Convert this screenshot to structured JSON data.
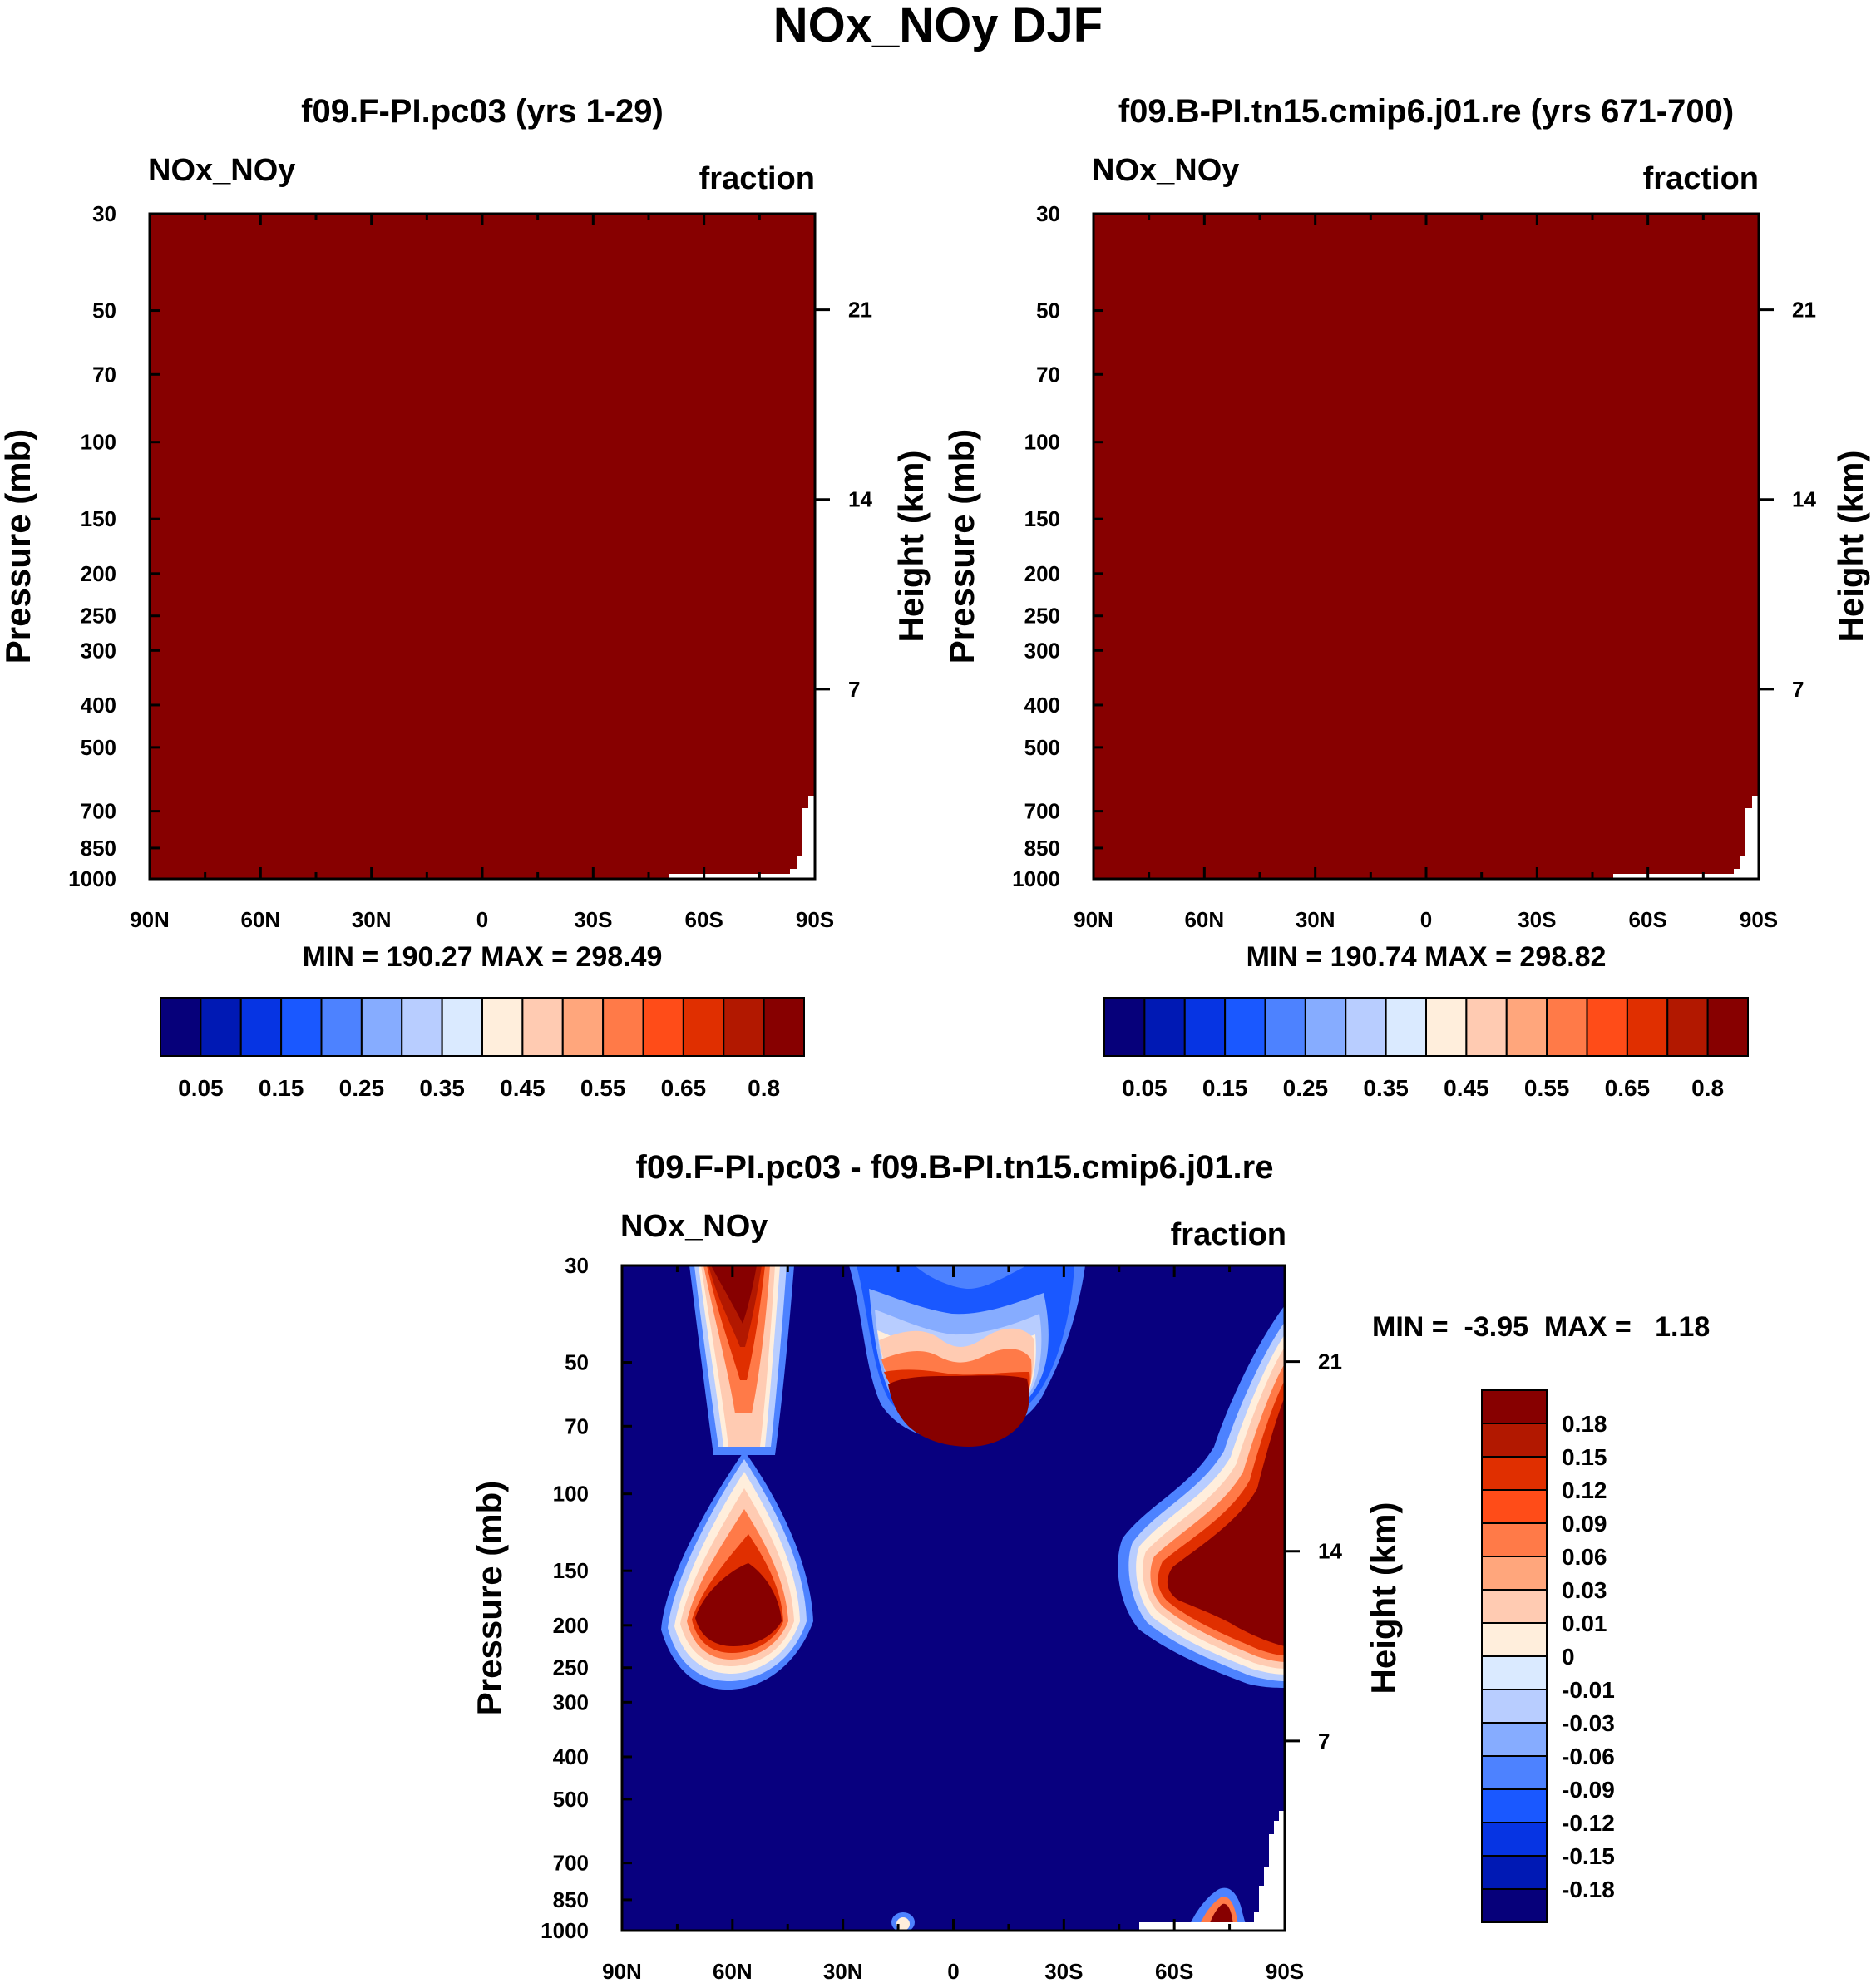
{
  "chart_data": {
    "type": "heatmap",
    "title": "NOx_NOy DJF",
    "panels": [
      {
        "id": "p1",
        "title": "f09.F-PI.pc03 (yrs 1-29)",
        "variable": "NOx_NOy",
        "units": "fraction",
        "ylabel": "Pressure (mb)",
        "y2label": "Height (km)",
        "x_ticks": [
          "90N",
          "60N",
          "30N",
          "0",
          "30S",
          "60S",
          "90S"
        ],
        "y_ticks": [
          "30",
          "50",
          "70",
          "100",
          "150",
          "200",
          "250",
          "300",
          "400",
          "500",
          "700",
          "850",
          "1000"
        ],
        "y2_ticks": [
          "21",
          "14",
          "7"
        ],
        "stats": "MIN = 190.27  MAX = 298.49",
        "fill": "#870000",
        "colorbar_labels": [
          "0.05",
          "0.15",
          "0.25",
          "0.35",
          "0.45",
          "0.55",
          "0.65",
          "0.8"
        ]
      },
      {
        "id": "p2",
        "title": "f09.B-PI.tn15.cmip6.j01.re (yrs 671-700)",
        "variable": "NOx_NOy",
        "units": "fraction",
        "ylabel": "Pressure (mb)",
        "y2label": "Height (km)",
        "x_ticks": [
          "90N",
          "60N",
          "30N",
          "0",
          "30S",
          "60S",
          "90S"
        ],
        "y_ticks": [
          "30",
          "50",
          "70",
          "100",
          "150",
          "200",
          "250",
          "300",
          "400",
          "500",
          "700",
          "850",
          "1000"
        ],
        "y2_ticks": [
          "21",
          "14",
          "7"
        ],
        "stats": "MIN = 190.74  MAX = 298.82",
        "fill": "#870000",
        "colorbar_labels": [
          "0.05",
          "0.15",
          "0.25",
          "0.35",
          "0.45",
          "0.55",
          "0.65",
          "0.8"
        ]
      },
      {
        "id": "p3",
        "title": "f09.F-PI.pc03 - f09.B-PI.tn15.cmip6.j01.re",
        "variable": "NOx_NOy",
        "units": "fraction",
        "ylabel": "Pressure (mb)",
        "y2label": "Height (km)",
        "x_ticks": [
          "90N",
          "60N",
          "30N",
          "0",
          "30S",
          "60S",
          "90S"
        ],
        "y_ticks": [
          "30",
          "50",
          "70",
          "100",
          "150",
          "200",
          "250",
          "300",
          "400",
          "500",
          "700",
          "850",
          "1000"
        ],
        "y2_ticks": [
          "21",
          "14",
          "7"
        ],
        "stats": "MIN =  -3.95  MAX =   1.18",
        "fill": "#08007f",
        "colorbar_labels": [
          "0.18",
          "0.15",
          "0.12",
          "0.09",
          "0.06",
          "0.03",
          "0.01",
          "0",
          "-0.01",
          "-0.03",
          "-0.06",
          "-0.09",
          "-0.12",
          "-0.15",
          "-0.18"
        ]
      }
    ],
    "palette_main": [
      "#06007a",
      "#0019b4",
      "#0634e3",
      "#1a58ff",
      "#4d82ff",
      "#86acff",
      "#b8cdff",
      "#daeaff",
      "#ffeedc",
      "#ffcbb2",
      "#ffa67c",
      "#ff7a48",
      "#ff4c18",
      "#e02f00",
      "#b21800",
      "#870000"
    ],
    "palette_diff": [
      "#870000",
      "#b21800",
      "#e02f00",
      "#ff4c18",
      "#ff7a48",
      "#ffa67c",
      "#ffcbb2",
      "#ffeedc",
      "#daeaff",
      "#b8cdff",
      "#86acff",
      "#4d82ff",
      "#1a58ff",
      "#0634e3",
      "#0019b4",
      "#06007a"
    ]
  }
}
